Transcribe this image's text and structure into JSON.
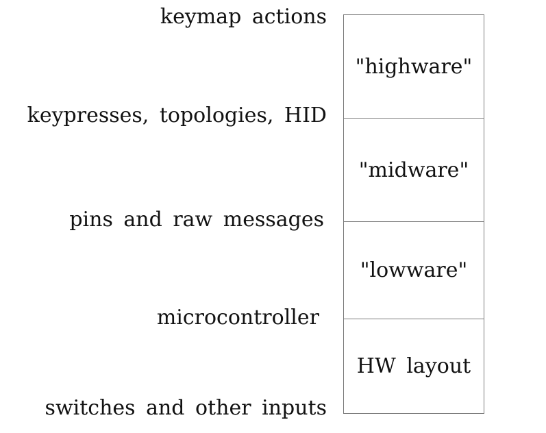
{
  "boundaries": [
    "keymap actions",
    "keypresses, topologies, HID",
    "pins and raw messages",
    "microcontroller",
    "switches and other inputs"
  ],
  "layers": [
    "\"highware\"",
    "\"midware\"",
    "\"lowware\"",
    "HW layout"
  ]
}
